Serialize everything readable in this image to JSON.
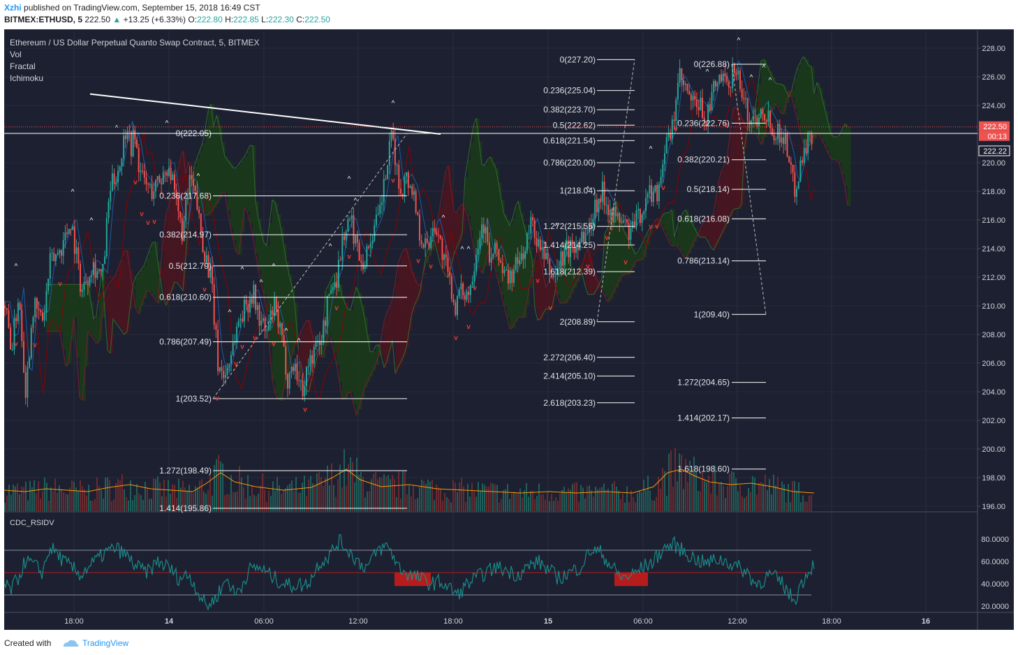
{
  "header": {
    "author": "Xzhi",
    "published_text": "published on TradingView.com, September 15, 2018 16:49 CST",
    "symbol": "BITMEX:ETHUSD, 5",
    "last": "222.50",
    "change": "+13.25 (+6.33%)",
    "o_label": "O:",
    "o": "222.80",
    "h_label": "H:",
    "h": "222.85",
    "l_label": "L:",
    "l": "222.30",
    "c_label": "C:",
    "c": "222.50"
  },
  "legend": {
    "title": "Ethereum / US Dollar Perpetual Quanto Swap Contract, 5, BITMEX",
    "indicators": [
      "Vol",
      "Fractal",
      "Ichimoku"
    ]
  },
  "rsi_label": "CDC_RSIDV",
  "footer": {
    "created": "Created with",
    "brand": "TradingView"
  },
  "price_tags": {
    "last": "222.50",
    "countdown": "00:13",
    "line": "222.22"
  },
  "colors": {
    "background": "#1d2030",
    "up": "#26a69a",
    "down": "#ef5350",
    "fib": "#ffffff",
    "kijun": "#8b0000",
    "tenkan": "#1e5aa8",
    "cloud_green": "#1b3a1b",
    "cloud_red": "#4a1520",
    "volume_ma": "#ff9800",
    "rsi": "#1a8a8a"
  },
  "chart_data": {
    "type": "line",
    "price_axis": {
      "ylim": [
        195.5,
        229.3
      ],
      "ticks": [
        "228.00",
        "226.00",
        "224.00",
        "222.00",
        "220.00",
        "218.00",
        "216.00",
        "214.00",
        "212.00",
        "210.00",
        "208.00",
        "206.00",
        "204.00",
        "202.00",
        "200.00",
        "198.00",
        "196.00"
      ]
    },
    "rsi_axis": {
      "ylim": [
        15,
        88
      ],
      "ticks": [
        "80.0000",
        "60.0000",
        "40.0000",
        "20.0000"
      ],
      "levels": [
        70,
        50,
        30
      ]
    },
    "time_axis": {
      "ticks": [
        "18:00",
        "14",
        "06:00",
        "12:00",
        "18:00",
        "15",
        "06:00",
        "12:00",
        "18:00",
        "16"
      ]
    },
    "price_path": [
      [
        0,
        210
      ],
      [
        10,
        207
      ],
      [
        20,
        211
      ],
      [
        30,
        204
      ],
      [
        40,
        210
      ],
      [
        55,
        209
      ],
      [
        65,
        213
      ],
      [
        80,
        214
      ],
      [
        95,
        216
      ],
      [
        110,
        211
      ],
      [
        125,
        213
      ],
      [
        140,
        212
      ],
      [
        150,
        218
      ],
      [
        165,
        220
      ],
      [
        175,
        223
      ],
      [
        180,
        221
      ],
      [
        185,
        222
      ],
      [
        195,
        219
      ],
      [
        210,
        218
      ],
      [
        225,
        219
      ],
      [
        235,
        220
      ],
      [
        245,
        217
      ],
      [
        255,
        215
      ],
      [
        265,
        219
      ],
      [
        275,
        217
      ],
      [
        285,
        214
      ],
      [
        295,
        212
      ],
      [
        305,
        206
      ],
      [
        315,
        205
      ],
      [
        325,
        207
      ],
      [
        335,
        209
      ],
      [
        345,
        210
      ],
      [
        355,
        211
      ],
      [
        365,
        209
      ],
      [
        375,
        208
      ],
      [
        385,
        210
      ],
      [
        395,
        208
      ],
      [
        405,
        205
      ],
      [
        415,
        206
      ],
      [
        425,
        204
      ],
      [
        435,
        206
      ],
      [
        445,
        207
      ],
      [
        455,
        208
      ],
      [
        465,
        211
      ],
      [
        475,
        212
      ],
      [
        485,
        215
      ],
      [
        495,
        216
      ],
      [
        505,
        214
      ],
      [
        515,
        213
      ],
      [
        525,
        215
      ],
      [
        535,
        216
      ],
      [
        545,
        219
      ],
      [
        555,
        222
      ],
      [
        565,
        218
      ],
      [
        575,
        219
      ],
      [
        585,
        218
      ],
      [
        595,
        215
      ],
      [
        605,
        214
      ],
      [
        615,
        216
      ],
      [
        625,
        214
      ],
      [
        635,
        212
      ],
      [
        645,
        210
      ],
      [
        655,
        211
      ],
      [
        665,
        211
      ],
      [
        675,
        214
      ],
      [
        685,
        216
      ],
      [
        695,
        213
      ],
      [
        705,
        214
      ],
      [
        715,
        212
      ],
      [
        725,
        212
      ],
      [
        735,
        213
      ],
      [
        745,
        214
      ],
      [
        755,
        216
      ],
      [
        765,
        214
      ],
      [
        775,
        213
      ],
      [
        785,
        212
      ],
      [
        795,
        213
      ],
      [
        805,
        214
      ],
      [
        815,
        214
      ],
      [
        825,
        215
      ],
      [
        835,
        215
      ],
      [
        845,
        217
      ],
      [
        855,
        218
      ],
      [
        865,
        217
      ],
      [
        875,
        216
      ],
      [
        885,
        216
      ],
      [
        895,
        215
      ],
      [
        905,
        216
      ],
      [
        915,
        217
      ],
      [
        925,
        218
      ],
      [
        935,
        218
      ],
      [
        945,
        221
      ],
      [
        955,
        222
      ],
      [
        965,
        226
      ],
      [
        975,
        225
      ],
      [
        985,
        224
      ],
      [
        995,
        224
      ],
      [
        1005,
        223
      ],
      [
        1015,
        225
      ],
      [
        1025,
        226
      ],
      [
        1035,
        225
      ],
      [
        1045,
        227
      ],
      [
        1055,
        225
      ],
      [
        1065,
        223
      ],
      [
        1075,
        223
      ],
      [
        1085,
        224
      ],
      [
        1095,
        223
      ],
      [
        1105,
        222
      ],
      [
        1115,
        222
      ],
      [
        1125,
        220
      ],
      [
        1130,
        218
      ],
      [
        1135,
        219
      ],
      [
        1145,
        221
      ],
      [
        1155,
        222
      ],
      [
        1160,
        222.5
      ]
    ],
    "rsi_path": [
      [
        0,
        38
      ],
      [
        10,
        35
      ],
      [
        20,
        45
      ],
      [
        30,
        60
      ],
      [
        40,
        58
      ],
      [
        55,
        50
      ],
      [
        65,
        72
      ],
      [
        75,
        68
      ],
      [
        85,
        60
      ],
      [
        95,
        55
      ],
      [
        110,
        48
      ],
      [
        120,
        55
      ],
      [
        130,
        60
      ],
      [
        145,
        68
      ],
      [
        160,
        72
      ],
      [
        175,
        65
      ],
      [
        190,
        55
      ],
      [
        205,
        50
      ],
      [
        220,
        60
      ],
      [
        235,
        55
      ],
      [
        250,
        45
      ],
      [
        265,
        48
      ],
      [
        280,
        30
      ],
      [
        290,
        20
      ],
      [
        300,
        25
      ],
      [
        310,
        35
      ],
      [
        320,
        45
      ],
      [
        330,
        30
      ],
      [
        340,
        38
      ],
      [
        350,
        52
      ],
      [
        365,
        55
      ],
      [
        380,
        48
      ],
      [
        395,
        42
      ],
      [
        410,
        38
      ],
      [
        420,
        40
      ],
      [
        430,
        38
      ],
      [
        440,
        45
      ],
      [
        450,
        58
      ],
      [
        465,
        65
      ],
      [
        480,
        78
      ],
      [
        490,
        72
      ],
      [
        500,
        65
      ],
      [
        510,
        58
      ],
      [
        520,
        55
      ],
      [
        535,
        70
      ],
      [
        550,
        74
      ],
      [
        565,
        55
      ],
      [
        580,
        48
      ],
      [
        595,
        45
      ],
      [
        610,
        40
      ],
      [
        625,
        42
      ],
      [
        640,
        35
      ],
      [
        650,
        30
      ],
      [
        660,
        38
      ],
      [
        675,
        45
      ],
      [
        690,
        50
      ],
      [
        705,
        55
      ],
      [
        720,
        52
      ],
      [
        735,
        48
      ],
      [
        750,
        55
      ],
      [
        765,
        60
      ],
      [
        780,
        52
      ],
      [
        795,
        45
      ],
      [
        810,
        50
      ],
      [
        825,
        55
      ],
      [
        840,
        70
      ],
      [
        855,
        68
      ],
      [
        870,
        55
      ],
      [
        885,
        45
      ],
      [
        900,
        48
      ],
      [
        915,
        55
      ],
      [
        930,
        60
      ],
      [
        945,
        72
      ],
      [
        960,
        75
      ],
      [
        975,
        68
      ],
      [
        990,
        62
      ],
      [
        1005,
        58
      ],
      [
        1020,
        62
      ],
      [
        1035,
        60
      ],
      [
        1050,
        55
      ],
      [
        1065,
        50
      ],
      [
        1075,
        40
      ],
      [
        1085,
        42
      ],
      [
        1095,
        48
      ],
      [
        1105,
        45
      ],
      [
        1115,
        40
      ],
      [
        1125,
        30
      ],
      [
        1132,
        25
      ],
      [
        1140,
        38
      ],
      [
        1150,
        50
      ],
      [
        1160,
        58
      ]
    ],
    "volume_ma": [
      [
        0,
        30
      ],
      [
        30,
        28
      ],
      [
        60,
        32
      ],
      [
        90,
        30
      ],
      [
        120,
        28
      ],
      [
        150,
        34
      ],
      [
        180,
        38
      ],
      [
        210,
        32
      ],
      [
        240,
        30
      ],
      [
        270,
        28
      ],
      [
        290,
        40
      ],
      [
        310,
        55
      ],
      [
        330,
        42
      ],
      [
        360,
        35
      ],
      [
        400,
        30
      ],
      [
        440,
        34
      ],
      [
        470,
        48
      ],
      [
        490,
        60
      ],
      [
        510,
        45
      ],
      [
        540,
        35
      ],
      [
        580,
        38
      ],
      [
        620,
        32
      ],
      [
        660,
        30
      ],
      [
        700,
        28
      ],
      [
        740,
        26
      ],
      [
        780,
        28
      ],
      [
        820,
        26
      ],
      [
        860,
        28
      ],
      [
        900,
        26
      ],
      [
        930,
        35
      ],
      [
        950,
        55
      ],
      [
        970,
        60
      ],
      [
        990,
        50
      ],
      [
        1010,
        42
      ],
      [
        1040,
        38
      ],
      [
        1070,
        40
      ],
      [
        1100,
        35
      ],
      [
        1130,
        28
      ],
      [
        1160,
        26
      ]
    ],
    "fib_sets": [
      {
        "levels": [
          {
            "label": "0(222.05)",
            "price": 222.05
          },
          {
            "label": "0.236(217.68)",
            "price": 217.68
          },
          {
            "label": "0.382(214.97)",
            "price": 214.97
          },
          {
            "label": "0.5(212.79)",
            "price": 212.79
          },
          {
            "label": "0.618(210.60)",
            "price": 210.6
          },
          {
            "label": "0.786(207.49)",
            "price": 207.49
          },
          {
            "label": "1(203.52)",
            "price": 203.52
          },
          {
            "label": "1.272(198.49)",
            "price": 198.49
          },
          {
            "label": "1.414(195.86)",
            "price": 195.86
          }
        ]
      },
      {
        "levels": [
          {
            "label": "0(227.20)",
            "price": 227.2
          },
          {
            "label": "0.236(225.04)",
            "price": 225.04
          },
          {
            "label": "0.382(223.70)",
            "price": 223.7
          },
          {
            "label": "0.5(222.62)",
            "price": 222.62
          },
          {
            "label": "0.618(221.54)",
            "price": 221.54
          },
          {
            "label": "0.786(220.00)",
            "price": 220.0
          },
          {
            "label": "1(218.04)",
            "price": 218.04
          },
          {
            "label": "1.272(215.55)",
            "price": 215.55
          },
          {
            "label": "1.414(214.25)",
            "price": 214.25
          },
          {
            "label": "1.618(212.39)",
            "price": 212.39
          },
          {
            "label": "2(208.89)",
            "price": 208.89
          },
          {
            "label": "2.272(206.40)",
            "price": 206.4
          },
          {
            "label": "2.414(205.10)",
            "price": 205.1
          },
          {
            "label": "2.618(203.23)",
            "price": 203.23
          }
        ]
      },
      {
        "levels": [
          {
            "label": "0(226.88)",
            "price": 226.88
          },
          {
            "label": "0.236(222.76)",
            "price": 222.76
          },
          {
            "label": "0.382(220.21)",
            "price": 220.21
          },
          {
            "label": "0.5(218.14)",
            "price": 218.14
          },
          {
            "label": "0.618(216.08)",
            "price": 216.08
          },
          {
            "label": "0.786(213.14)",
            "price": 213.14
          },
          {
            "label": "1(209.40)",
            "price": 209.4
          },
          {
            "label": "1.272(204.65)",
            "price": 204.65
          },
          {
            "label": "1.414(202.17)",
            "price": 202.17
          },
          {
            "label": "1.618(198.60)",
            "price": 198.6
          }
        ]
      }
    ]
  }
}
